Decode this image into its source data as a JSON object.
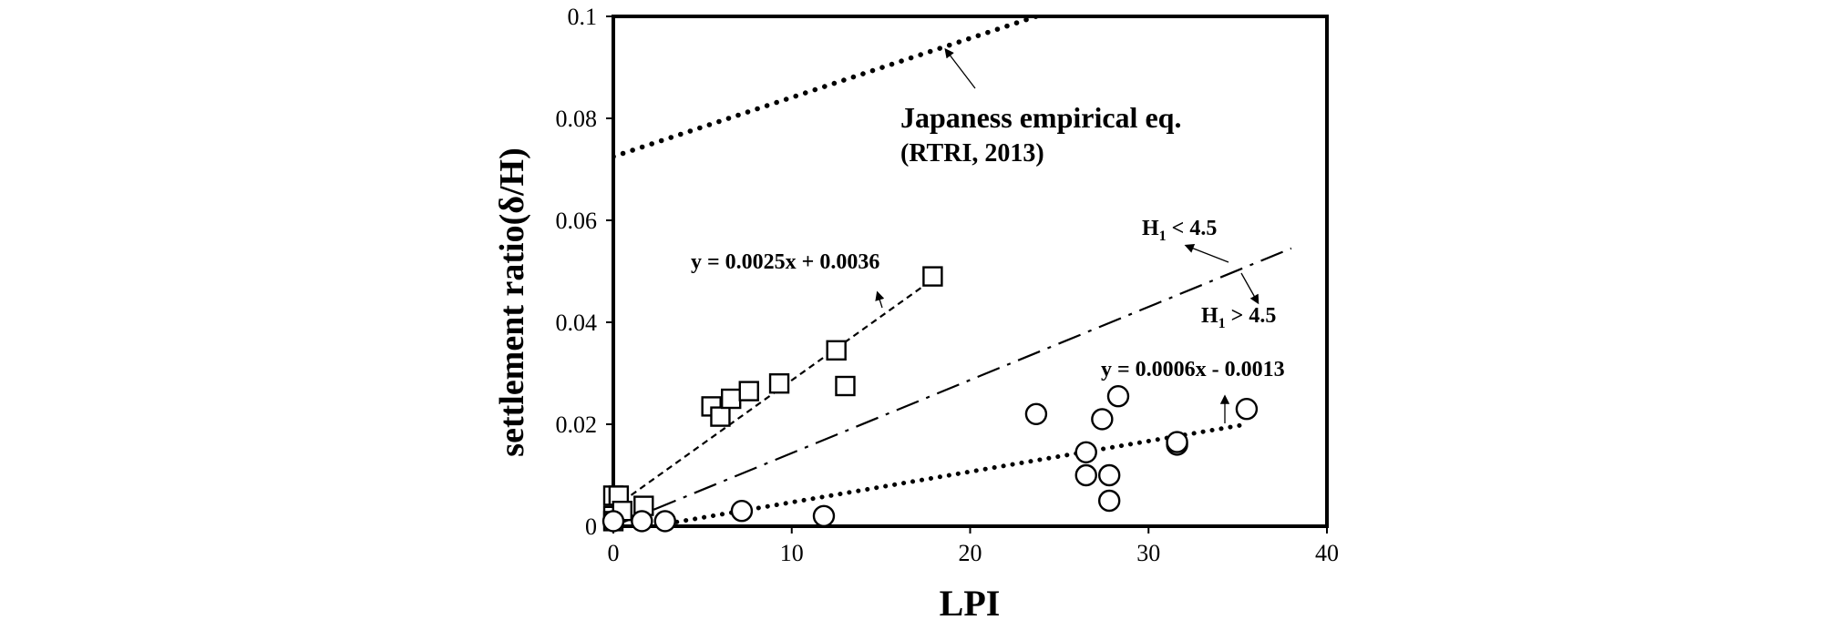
{
  "chart_data": {
    "type": "scatter",
    "xlabel": "LPI",
    "ylabel": "settlement ratio(δ/H)",
    "xlim": [
      0,
      40
    ],
    "ylim": [
      0,
      0.1
    ],
    "x_ticks": [
      "0",
      "10",
      "20",
      "30",
      "40"
    ],
    "y_ticks": [
      "0",
      "0.02",
      "0.04",
      "0.06",
      "0.08",
      "0.1"
    ],
    "grid": false,
    "series": [
      {
        "marker": "square",
        "points": [
          [
            0,
            0.006
          ],
          [
            0.3,
            0.006
          ],
          [
            0,
            0.002
          ],
          [
            0,
            0.001
          ],
          [
            0.5,
            0.003
          ],
          [
            1.7,
            0.004
          ],
          [
            5.5,
            0.0235
          ],
          [
            6.0,
            0.0215
          ],
          [
            6.6,
            0.025
          ],
          [
            7.6,
            0.0265
          ],
          [
            9.3,
            0.028
          ],
          [
            12.5,
            0.0345
          ],
          [
            13.0,
            0.0275
          ],
          [
            17.9,
            0.049
          ]
        ]
      },
      {
        "marker": "circle",
        "points": [
          [
            0,
            0.001
          ],
          [
            1.6,
            0.001
          ],
          [
            2.9,
            0.001
          ],
          [
            7.2,
            0.003
          ],
          [
            11.8,
            0.002
          ],
          [
            23.7,
            0.022
          ],
          [
            26.5,
            0.0145
          ],
          [
            26.5,
            0.01
          ],
          [
            27.4,
            0.021
          ],
          [
            27.8,
            0.01
          ],
          [
            27.8,
            0.005
          ],
          [
            28.3,
            0.0255
          ],
          [
            31.6,
            0.016
          ],
          [
            31.6,
            0.0165
          ],
          [
            35.5,
            0.023
          ]
        ]
      }
    ],
    "lines": [
      {
        "style": "dashed",
        "x": [
          0,
          17.9
        ],
        "y": [
          0.0036,
          0.0484
        ]
      },
      {
        "style": "dotted",
        "x": [
          0,
          35.5
        ],
        "y": [
          -0.0013,
          0.02
        ]
      },
      {
        "style": "dash-dot",
        "x": [
          0,
          38.0
        ],
        "y": [
          0.0,
          0.0545
        ]
      },
      {
        "style": "dotted-heavy",
        "x": [
          0,
          23.7
        ],
        "y": [
          0.0725,
          0.1
        ]
      }
    ],
    "annotations": [
      {
        "text": "Japaness empirical eq.",
        "id": "jp1"
      },
      {
        "text": "(RTRI, 2013)",
        "id": "jp2"
      },
      {
        "text": "y = 0.0025x + 0.0036",
        "id": "eq1"
      },
      {
        "text": "y = 0.0006x - 0.0013",
        "id": "eq2"
      },
      {
        "text_main": "H",
        "text_sub": "1",
        "text_rest": " < 4.5",
        "id": "h_lt"
      },
      {
        "text_main": "H",
        "text_sub": "1",
        "text_rest": " > 4.5",
        "id": "h_gt"
      }
    ]
  }
}
